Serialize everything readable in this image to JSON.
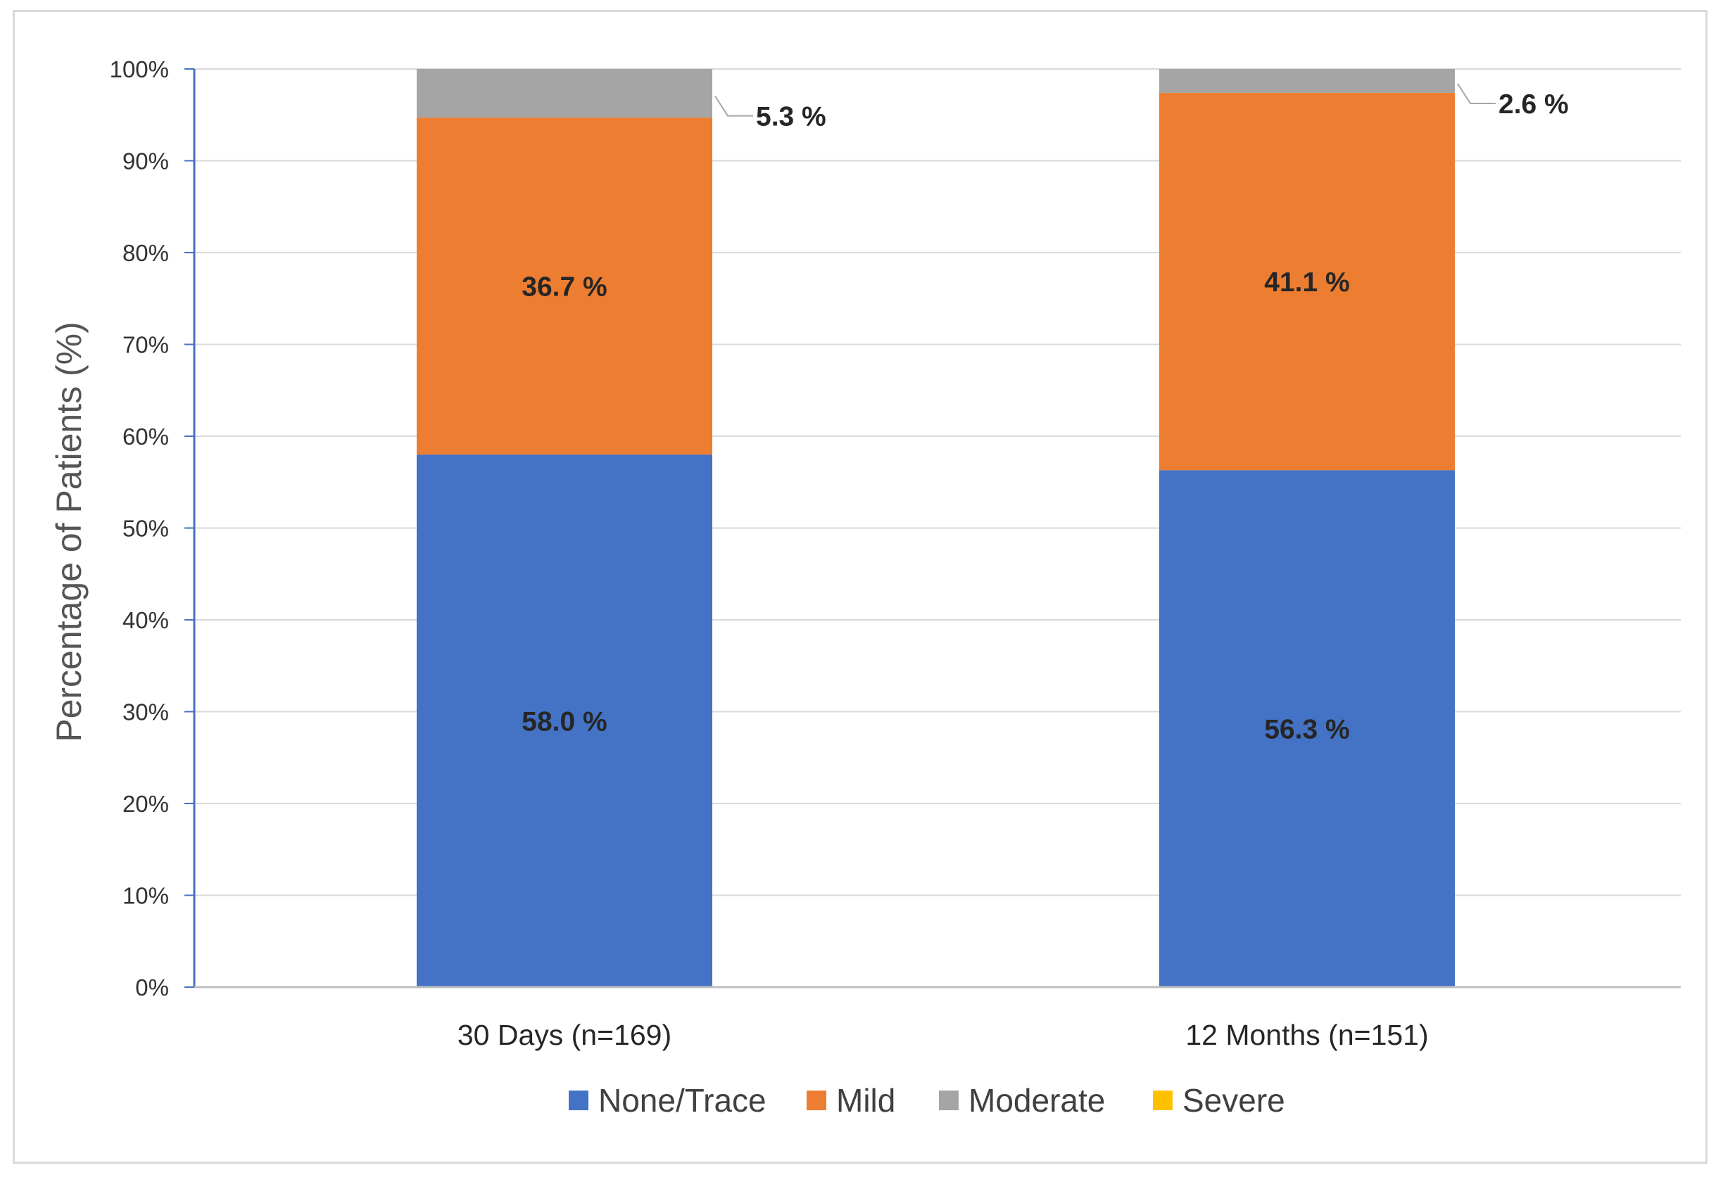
{
  "chart_data": {
    "type": "bar",
    "stacked": true,
    "title": "",
    "xlabel": "",
    "ylabel": "Percentage of Patients (%)",
    "ylim": [
      0,
      100
    ],
    "y_ticks": [
      "0%",
      "10%",
      "20%",
      "30%",
      "40%",
      "50%",
      "60%",
      "70%",
      "80%",
      "90%",
      "100%"
    ],
    "grid": true,
    "legend_position": "bottom",
    "categories": [
      "30 Days (n=169)",
      "12 Months (n=151)"
    ],
    "series": [
      {
        "name": "None/Trace",
        "color": "#4472c4",
        "values": [
          58.0,
          56.3
        ],
        "labels": [
          "58.0 %",
          "56.3 %"
        ]
      },
      {
        "name": "Mild",
        "color": "#ed7d31",
        "values": [
          36.7,
          41.1
        ],
        "labels": [
          "36.7 %",
          "41.1 %"
        ]
      },
      {
        "name": "Moderate",
        "color": "#a5a5a5",
        "values": [
          5.3,
          2.6
        ],
        "labels": [
          "5.3 %",
          "2.6 %"
        ]
      },
      {
        "name": "Severe",
        "color": "#ffc000",
        "values": [
          0,
          0
        ],
        "labels": [
          "",
          ""
        ]
      }
    ]
  }
}
